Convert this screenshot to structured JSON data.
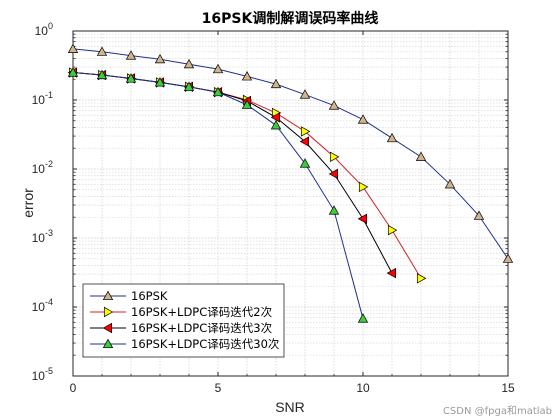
{
  "watermark": "CSDN @fpga和matlab",
  "colors": {
    "series_16psk": "#1f2f8f",
    "series_iter2": "#d22020",
    "series_iter3": "#000000",
    "series_iter30": "#1f2f8f",
    "marker_16psk": "#d2b48c",
    "marker_iter2": "#ffff00",
    "marker_iter3": "#ff0000",
    "marker_iter30": "#3ccc3c"
  },
  "chart_data": {
    "type": "line",
    "title": "16PSK调制解调误码率曲线",
    "xlabel": "SNR",
    "ylabel": "error",
    "xlim": [
      0,
      15
    ],
    "ylim": [
      1e-05,
      1
    ],
    "yscale": "log",
    "grid": true,
    "minor_grid": true,
    "legend_position": "bottom-left",
    "x_ticks": [
      "0",
      "5",
      "10",
      "15"
    ],
    "y_ticks": [
      {
        "base": "10",
        "exp": "0"
      },
      {
        "base": "10",
        "exp": "-1"
      },
      {
        "base": "10",
        "exp": "-2"
      },
      {
        "base": "10",
        "exp": "-3"
      },
      {
        "base": "10",
        "exp": "-4"
      },
      {
        "base": "10",
        "exp": "-5"
      }
    ],
    "series": [
      {
        "name": "16PSK",
        "marker": "triangle-up",
        "x": [
          0,
          1,
          2,
          3,
          4,
          5,
          6,
          7,
          8,
          9,
          10,
          11,
          12,
          13,
          14,
          15
        ],
        "y": [
          0.55,
          0.5,
          0.44,
          0.39,
          0.33,
          0.28,
          0.22,
          0.17,
          0.12,
          0.083,
          0.052,
          0.028,
          0.015,
          0.006,
          0.0021,
          0.0005
        ]
      },
      {
        "name": "16PSK+LDPC译码迭代2次",
        "marker": "triangle-right",
        "x": [
          0,
          1,
          2,
          3,
          4,
          5,
          6,
          7,
          8,
          9,
          10,
          11,
          12
        ],
        "y": [
          0.25,
          0.23,
          0.205,
          0.18,
          0.155,
          0.13,
          0.1,
          0.065,
          0.035,
          0.015,
          0.0055,
          0.0013,
          0.00026
        ]
      },
      {
        "name": "16PSK+LDPC译码迭代3次",
        "marker": "triangle-left",
        "x": [
          0,
          1,
          2,
          3,
          4,
          5,
          6,
          7,
          8,
          9,
          10,
          11
        ],
        "y": [
          0.25,
          0.23,
          0.205,
          0.18,
          0.155,
          0.13,
          0.097,
          0.056,
          0.025,
          0.0085,
          0.0019,
          0.00031
        ]
      },
      {
        "name": "16PSK+LDPC译码迭代30次",
        "marker": "triangle-up",
        "x": [
          0,
          1,
          2,
          3,
          4,
          5,
          6,
          7,
          8,
          9,
          10
        ],
        "y": [
          0.25,
          0.23,
          0.205,
          0.18,
          0.155,
          0.13,
          0.085,
          0.043,
          0.012,
          0.0025,
          6.8e-05
        ]
      }
    ]
  }
}
